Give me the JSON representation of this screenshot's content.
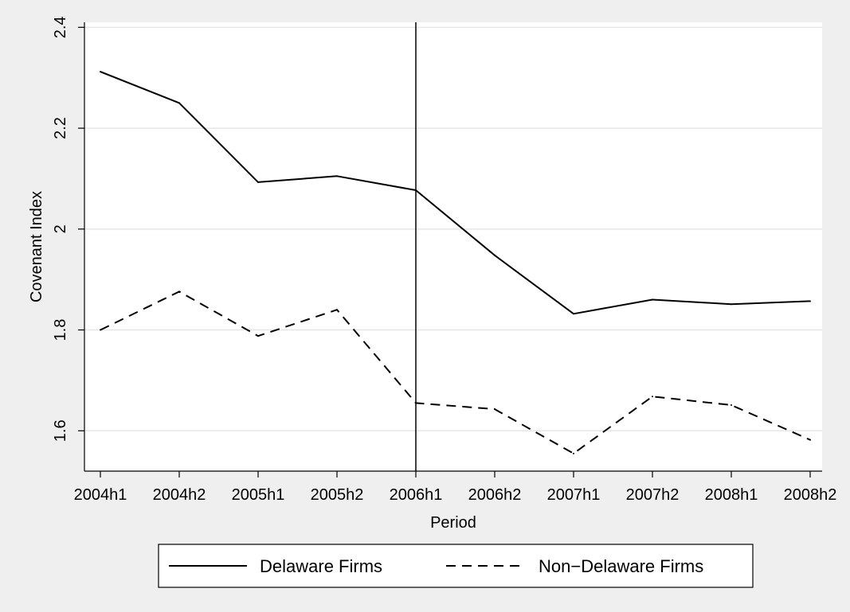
{
  "chart_data": {
    "type": "line",
    "title": "",
    "xlabel": "Period",
    "ylabel": "Covenant Index",
    "categories": [
      "2004h1",
      "2004h2",
      "2005h1",
      "2005h2",
      "2006h1",
      "2006h2",
      "2007h1",
      "2007h2",
      "2008h1",
      "2008h2"
    ],
    "ylim": [
      1.52,
      2.41
    ],
    "yticks": [
      1.6,
      1.8,
      2,
      2.2,
      2.4
    ],
    "ytick_labels": [
      "1.6",
      "1.8",
      "2",
      "2.2",
      "2.4"
    ],
    "grid": true,
    "vertical_line_at": "2006h1",
    "legend_position": "bottom",
    "series": [
      {
        "name": "Delaware Firms",
        "style": "solid",
        "color": "#000000",
        "values": [
          2.312,
          2.25,
          2.093,
          2.105,
          2.077,
          1.948,
          1.832,
          1.86,
          1.851,
          1.857
        ]
      },
      {
        "name": "Non−Delaware Firms",
        "style": "dashed",
        "color": "#000000",
        "values": [
          1.8,
          1.876,
          1.788,
          1.84,
          1.655,
          1.643,
          1.555,
          1.668,
          1.651,
          1.582
        ]
      }
    ],
    "colors": {
      "page_background": "#efefef",
      "plot_background": "#ffffff",
      "grid": "#e6e6e6"
    }
  }
}
